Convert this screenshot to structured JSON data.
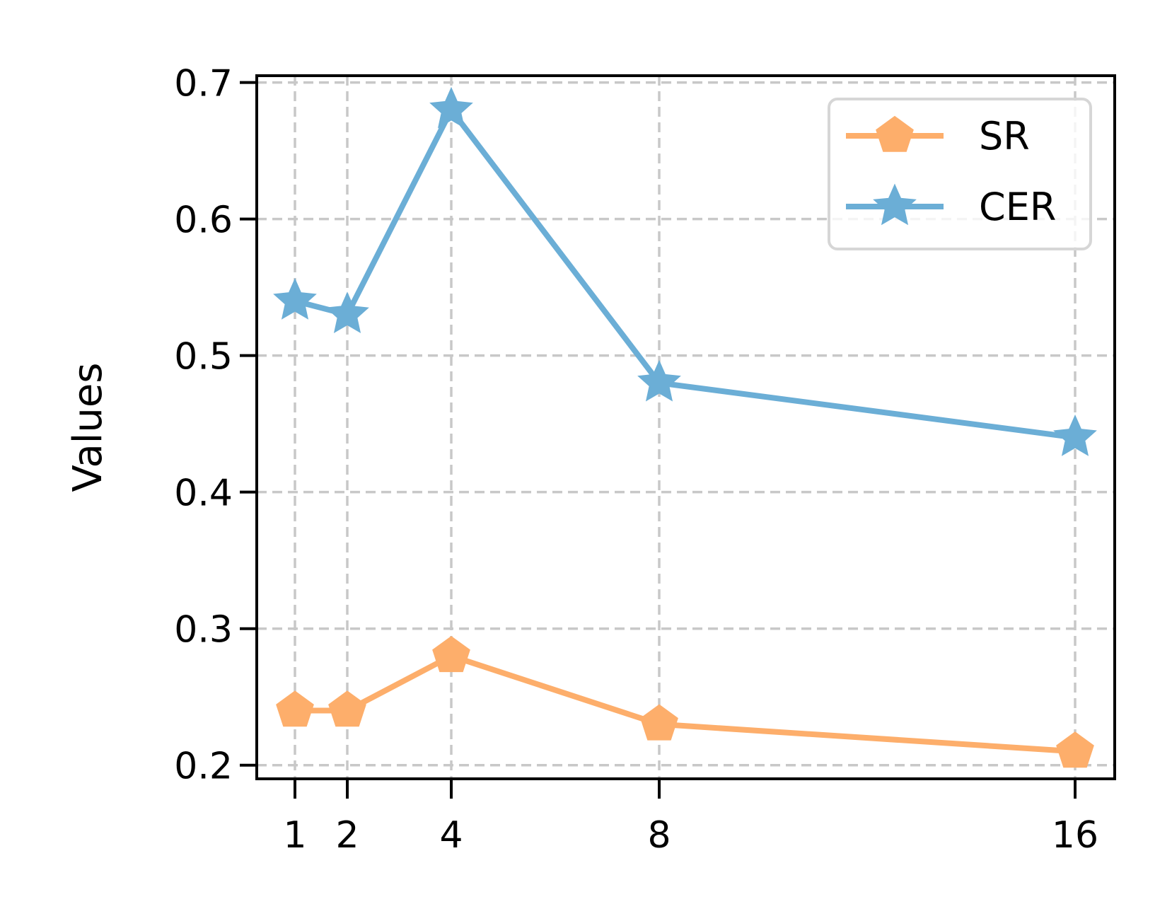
{
  "chart_data": {
    "type": "line",
    "title": "",
    "xlabel": "",
    "ylabel": "Values",
    "x": [
      1,
      2,
      4,
      8,
      16
    ],
    "x_tick_labels": [
      "1",
      "2",
      "4",
      "8",
      "16"
    ],
    "y_ticks": [
      0.2,
      0.3,
      0.4,
      0.5,
      0.6,
      0.7
    ],
    "y_tick_labels": [
      "0.2",
      "0.3",
      "0.4",
      "0.5",
      "0.6",
      "0.7"
    ],
    "ylim": [
      0.19,
      0.705
    ],
    "grid": true,
    "legend_position": "top-right",
    "series": [
      {
        "name": "SR",
        "marker": "pentagon",
        "color": "#fdae6b",
        "values": [
          0.24,
          0.24,
          0.28,
          0.23,
          0.21
        ]
      },
      {
        "name": "CER",
        "marker": "star",
        "color": "#6baed6",
        "values": [
          0.54,
          0.53,
          0.68,
          0.48,
          0.44
        ]
      }
    ]
  }
}
